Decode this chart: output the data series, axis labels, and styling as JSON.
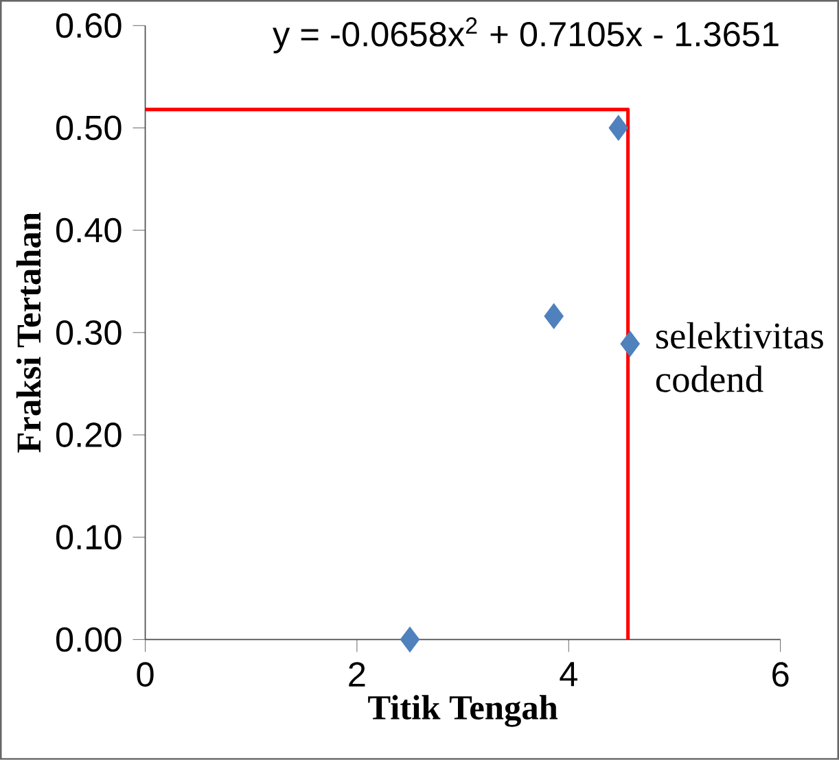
{
  "chart_data": {
    "type": "scatter",
    "xlabel": "Titik Tengah",
    "ylabel": "Fraksi Tertahan",
    "annotations": [
      "y = -0.0658x$^{2}$ + 0.7105x - 1.3651",
      {
        "text": "selektivitas codend",
        "x": 4.58,
        "y": 0.289
      }
    ],
    "series": [
      {
        "color": "#4f81bd",
        "marker": "diamond",
        "x": [
          2.5,
          3.86,
          4.47,
          4.58
        ],
        "values": [
          0.0,
          0.316,
          0.5,
          0.289
        ]
      },
      {
        "type": "line",
        "marker": "none",
        "color": "#ff0000",
        "x": [
          0,
          4.56,
          4.56
        ],
        "values": [
          0.518,
          0.518,
          0.0
        ]
      }
    ],
    "grid": false,
    "xlim": [
      0,
      6
    ],
    "xticks": [
      0,
      2,
      4,
      6
    ],
    "ylim": [
      0,
      0.6
    ],
    "yticks": [
      {
        "value": 0,
        "label": "0.00"
      },
      {
        "value": 0.1,
        "label": "0.10"
      },
      {
        "value": 0.2,
        "label": "0.20"
      },
      {
        "value": 0.3,
        "label": "0.30"
      },
      {
        "value": 0.4,
        "label": "0.40"
      },
      {
        "value": 0.5,
        "label": "0.50"
      },
      {
        "value": 0.6,
        "label": "0.60"
      }
    ]
  }
}
